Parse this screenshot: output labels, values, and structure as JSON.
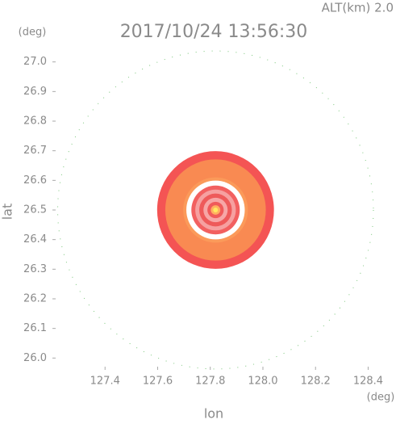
{
  "chart_data": {
    "type": "radar",
    "title": "2017/10/24 13:56:30",
    "subtitle": "ALT(km) 2.0",
    "x_label": "lon",
    "y_label": "lat",
    "x_unit": "(deg)",
    "y_unit": "(deg)",
    "xlim": [
      127.2,
      128.42
    ],
    "ylim": [
      25.96,
      27.04
    ],
    "xticks": [
      127.4,
      127.6,
      127.8,
      {
        "value": 128,
        "label": "128.0"
      },
      128.2,
      128.4
    ],
    "yticks": [
      {
        "value": 26,
        "label": "26.0"
      },
      26.1,
      26.2,
      26.3,
      26.4,
      26.5,
      26.6,
      26.7,
      26.8,
      26.9,
      {
        "value": 27,
        "label": "27.0"
      }
    ],
    "center": [
      127.82,
      26.5
    ],
    "range_ring": {
      "radius": 0.6,
      "color": "#7cc77c"
    },
    "rings": [
      {
        "radius": 0.222,
        "color": "#f45454"
      },
      {
        "radius": 0.191,
        "color": "#f98a52"
      },
      {
        "radius": 0.123,
        "color": "#fb9a5a"
      },
      {
        "radius": 0.111,
        "color": "#ffffff"
      },
      {
        "radius": 0.092,
        "color": "#f26060"
      },
      {
        "radius": 0.077,
        "color": "#f6a0a0"
      },
      {
        "radius": 0.062,
        "color": "#ee5a5a"
      },
      {
        "radius": 0.046,
        "color": "#f7a6a6"
      },
      {
        "radius": 0.031,
        "color": "#f05a5a"
      },
      {
        "radius": 0.018,
        "color": "#ffb060"
      },
      {
        "radius": 0.009,
        "color": "#ffe860"
      }
    ]
  }
}
